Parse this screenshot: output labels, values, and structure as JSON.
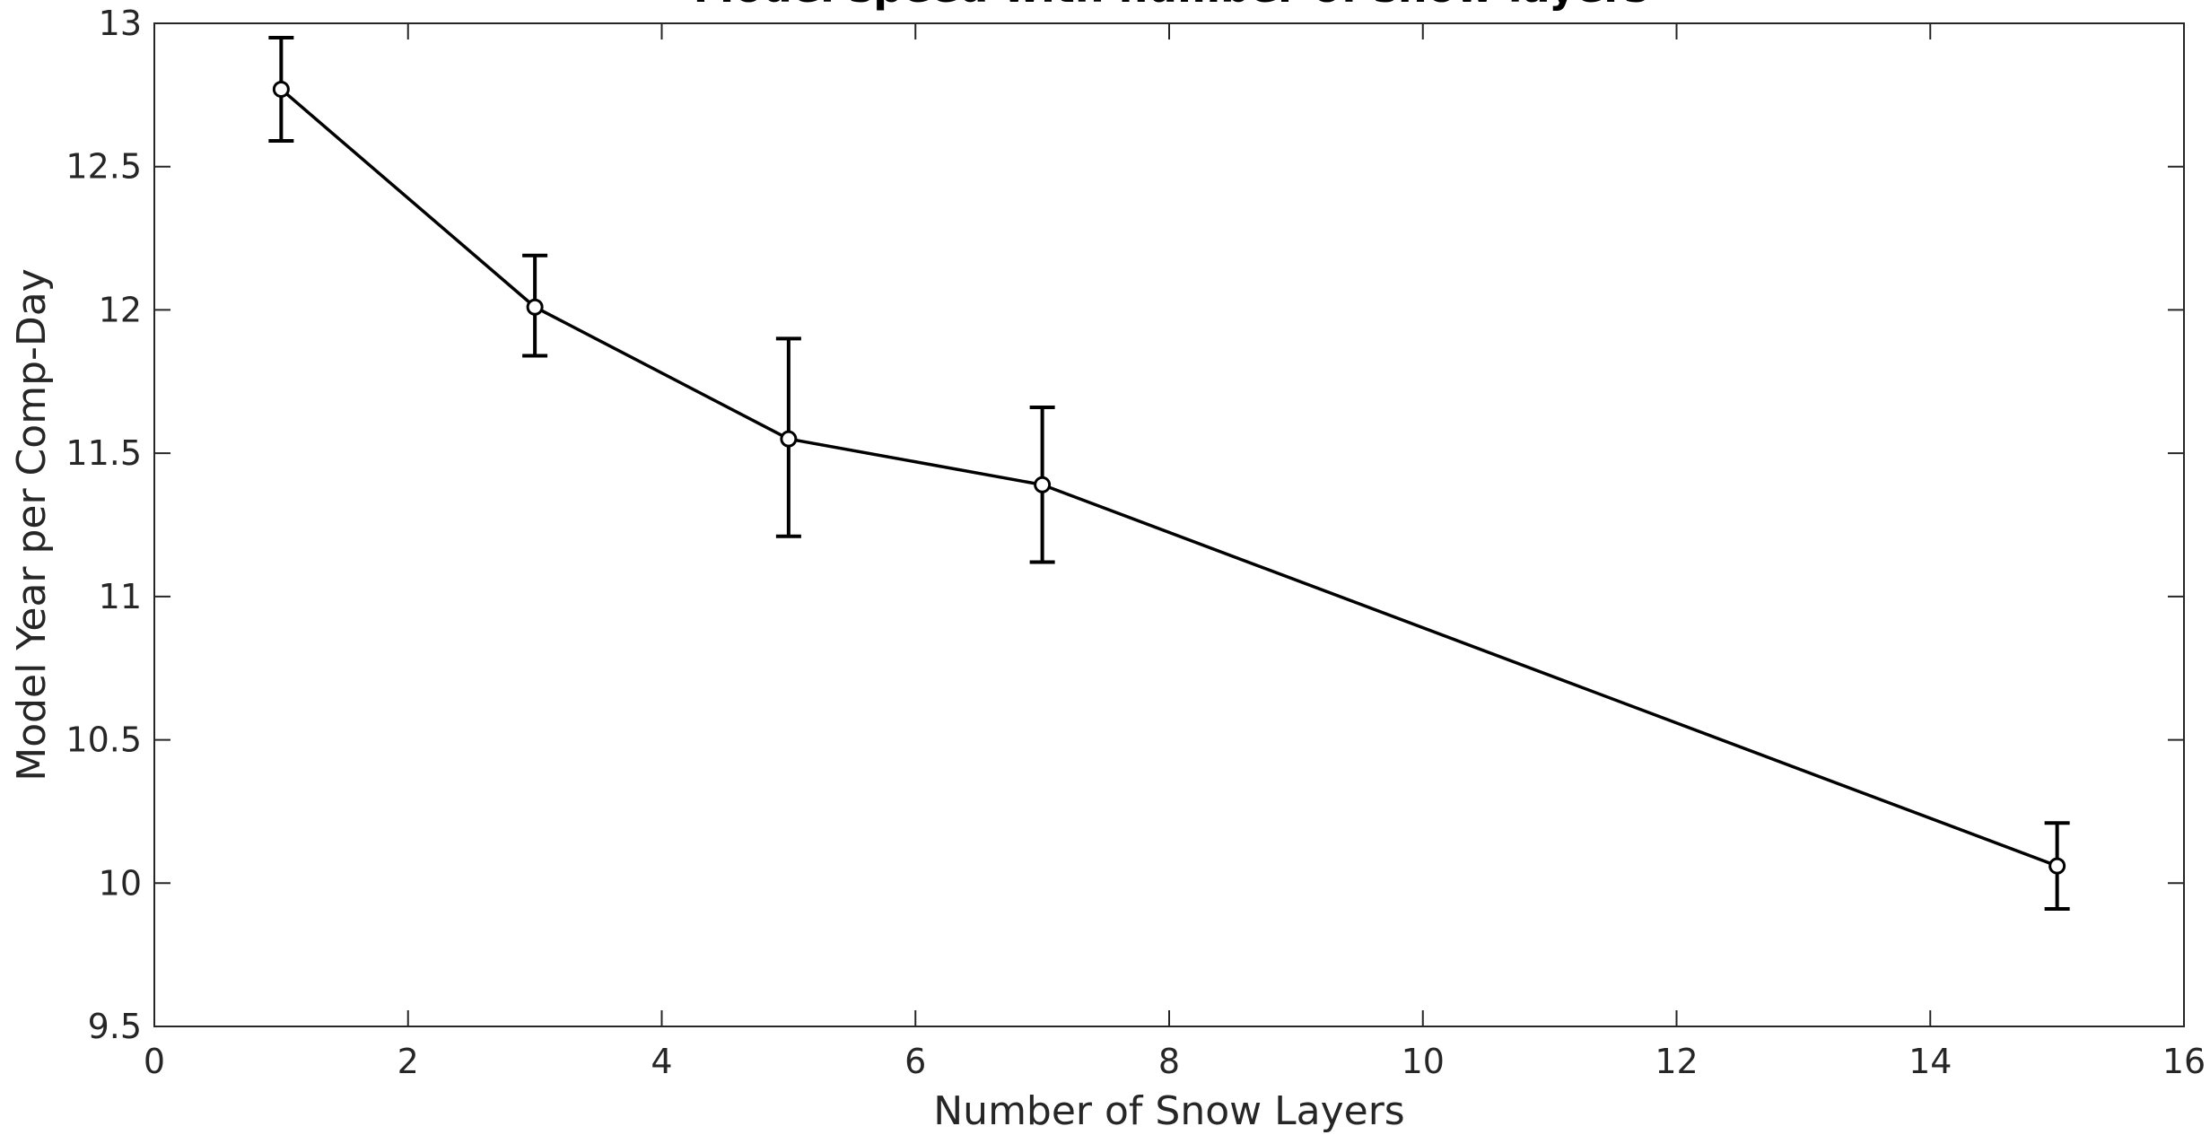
{
  "chart_data": {
    "type": "line",
    "title": "Model speed with number of snow layers",
    "xlabel": "Number of Snow Layers",
    "ylabel": "Model Year per Comp-Day",
    "xlim": [
      0,
      16
    ],
    "ylim": [
      9.5,
      13
    ],
    "xticks": [
      "0",
      "2",
      "4",
      "6",
      "8",
      "10",
      "12",
      "14",
      "16"
    ],
    "yticks": [
      "9.5",
      "10",
      "10.5",
      "11",
      "11.5",
      "12",
      "12.5",
      "13"
    ],
    "grid": false,
    "legend": "none",
    "colors": {
      "line": "#000000",
      "axis": "#262626"
    },
    "points": [
      {
        "x": 1,
        "y": 12.77,
        "lower": 12.59,
        "upper": 12.95
      },
      {
        "x": 3,
        "y": 12.01,
        "lower": 11.84,
        "upper": 12.19
      },
      {
        "x": 5,
        "y": 11.55,
        "lower": 11.21,
        "upper": 11.9
      },
      {
        "x": 7,
        "y": 11.39,
        "lower": 11.12,
        "upper": 11.66
      },
      {
        "x": 15,
        "y": 10.06,
        "lower": 9.91,
        "upper": 10.21
      }
    ]
  }
}
